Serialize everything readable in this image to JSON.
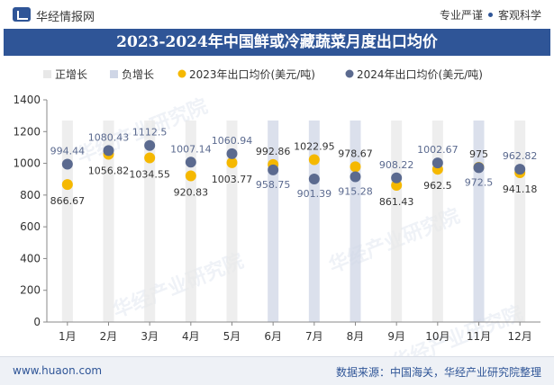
{
  "header": {
    "brand": "华经情报网",
    "tag_left": "专业严谨",
    "tag_right": "客观科学"
  },
  "footer": {
    "url": "www.huaon.com",
    "source": "数据来源：中国海关，华经产业研究院整理"
  },
  "watermark_text": "华经产业研究院",
  "colors": {
    "brand_blue": "#2f5597",
    "series_2023": "#f5b800",
    "series_2024": "#5b6a8f",
    "bar_positive": "#e8e8e8",
    "bar_negative": "#cfd6e6"
  },
  "chart_data": {
    "type": "line",
    "title": "2023-2024年中国鲜或冷藏蔬菜月度出口均价",
    "categories": [
      "1月",
      "2月",
      "3月",
      "4月",
      "5月",
      "6月",
      "7月",
      "8月",
      "9月",
      "10月",
      "11月",
      "12月"
    ],
    "series": [
      {
        "name": "2023年出口均价(美元/吨)",
        "values": [
          866.67,
          1056.82,
          1034.55,
          920.83,
          1003.77,
          992.86,
          1022.95,
          978.67,
          861.43,
          962.5,
          975,
          941.18
        ]
      },
      {
        "name": "2024年出口均价(美元/吨)",
        "values": [
          994.44,
          1080.43,
          1112.5,
          1007.14,
          1060.94,
          958.75,
          901.39,
          915.28,
          908.22,
          1002.67,
          972.5,
          962.82
        ]
      }
    ],
    "growth_legend": [
      "正增长",
      "负增长"
    ],
    "ylim": [
      0,
      1400
    ],
    "yticks": [
      0,
      200,
      400,
      600,
      800,
      1000,
      1200,
      1400
    ],
    "grid": false,
    "legend": "top"
  }
}
